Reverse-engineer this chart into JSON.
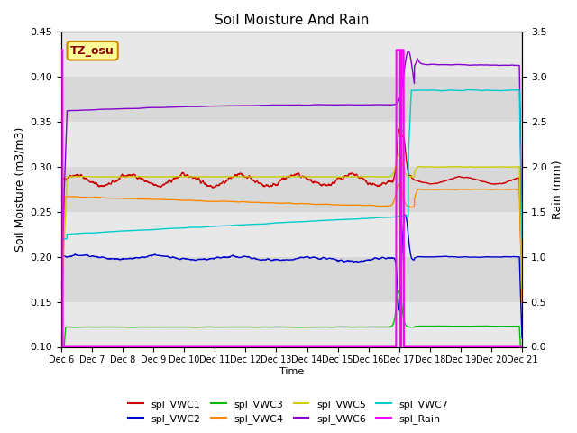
{
  "title": "Soil Moisture And Rain",
  "xlabel": "Time",
  "ylabel_left": "Soil Moisture (m3/m3)",
  "ylabel_right": "Rain (mm)",
  "xlim": [
    0,
    15
  ],
  "ylim_left": [
    0.1,
    0.45
  ],
  "ylim_right": [
    0.0,
    3.5
  ],
  "x_tick_labels": [
    "Dec 6",
    "Dec 7",
    "Dec 8",
    "Dec 9",
    "Dec 10",
    "Dec 11",
    "Dec 12",
    "Dec 13",
    "Dec 14",
    "Dec 15",
    "Dec 16",
    "Dec 17",
    "Dec 18",
    "Dec 19",
    "Dec 20",
    "Dec 21"
  ],
  "station_label": "TZ_osu",
  "colors": {
    "VWC1": "#cc0000",
    "VWC2": "#0000cc",
    "VWC3": "#00bb00",
    "VWC4": "#ff8800",
    "VWC5": "#cccc00",
    "VWC6": "#8800cc",
    "VWC7": "#00cccc",
    "Rain": "#ff00ff"
  },
  "legend_labels": [
    "spl_VWC1",
    "spl_VWC2",
    "spl_VWC3",
    "spl_VWC4",
    "spl_VWC5",
    "spl_VWC6",
    "spl_VWC7",
    "spl_Rain"
  ]
}
